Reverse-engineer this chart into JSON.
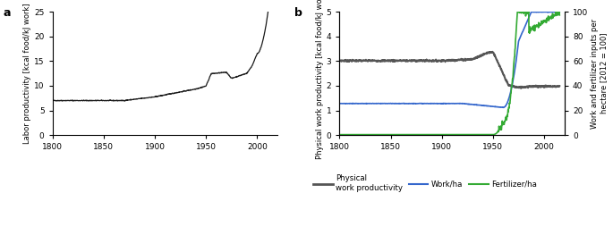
{
  "panel_a": {
    "label": "a",
    "ylabel": "Labor productivity [kcal food/kJ work]",
    "xlim": [
      1800,
      2020
    ],
    "ylim": [
      0,
      25
    ],
    "yticks": [
      0,
      5,
      10,
      15,
      20,
      25
    ],
    "xticks": [
      1800,
      1850,
      1900,
      1950,
      2000
    ]
  },
  "panel_b": {
    "label": "b",
    "ylabel_left": "Physical work productivity [kcal food/kJ work]",
    "ylabel_right": "Work and fertilizer inputs per\nhectare [2012 = 100]",
    "xlim": [
      1800,
      2020
    ],
    "ylim_left": [
      0,
      5
    ],
    "ylim_right": [
      0,
      100
    ],
    "yticks_left": [
      0,
      1,
      2,
      3,
      4,
      5
    ],
    "yticks_right": [
      0,
      20,
      40,
      60,
      80,
      100
    ],
    "xticks": [
      1800,
      1850,
      1900,
      1950,
      2000
    ],
    "legend": [
      {
        "label": "Physical\nwork productivity",
        "color": "#555555",
        "lw": 2.0
      },
      {
        "label": "Work/ha",
        "color": "#3366cc",
        "lw": 1.5
      },
      {
        "label": "Fertilizer/ha",
        "color": "#33aa33",
        "lw": 1.5
      }
    ]
  },
  "line_color_a": "#1a1a1a",
  "background": "#ffffff"
}
